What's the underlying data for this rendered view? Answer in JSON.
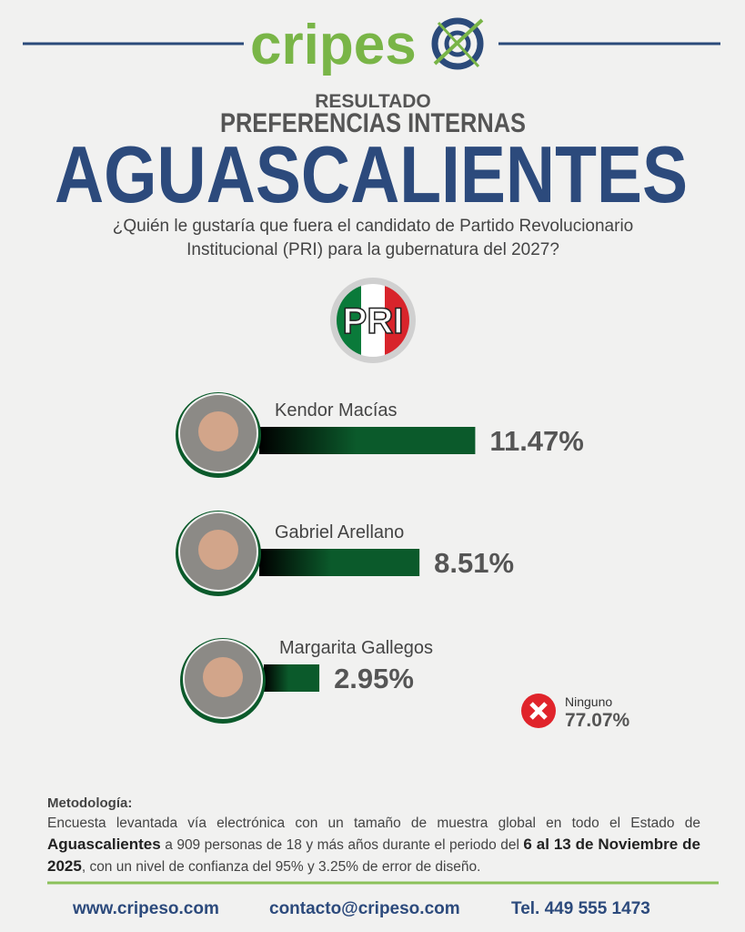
{
  "header": {
    "brand": "cripes"
  },
  "chart_data": {
    "type": "bar",
    "overline": "RESULTADO",
    "subtitle": "PREFERENCIAS INTERNAS",
    "title": "AGUASCALIENTES",
    "question": "¿Quién le gustaría que fuera el candidato de Partido Revolucionario Institucional (PRI) para la gubernatura del 2027?",
    "party_logo": "PRI",
    "categories": [
      "Kendor Macías",
      "Gabriel Arellano",
      "Margarita Gallegos"
    ],
    "values": [
      11.47,
      8.51,
      2.95
    ],
    "value_labels": [
      "11.47%",
      "8.51%",
      "2.95%"
    ],
    "color": "#0b5a2b",
    "other": {
      "name": "Ninguno",
      "value": 77.07,
      "label": "77.07%"
    }
  },
  "methodology": {
    "heading": "Metodología:",
    "segments": [
      {
        "text": "Encuesta levantada vía electrónica con un tamaño de muestra global en todo el Estado de ",
        "bold": false
      },
      {
        "text": "Aguascalientes",
        "bold": true
      },
      {
        "text": " a 909 personas de 18 y más años durante el periodo del ",
        "bold": false
      },
      {
        "text": "6 al 13 de Noviembre de 2025",
        "bold": true
      },
      {
        "text": ", con un nivel de confianza del 95% y 3.25% de error de diseño.",
        "bold": false
      }
    ]
  },
  "footer": {
    "website": "www.cripeso.com",
    "email": "contacto@cripeso.com",
    "phone": "Tel. 449 555 1473"
  }
}
